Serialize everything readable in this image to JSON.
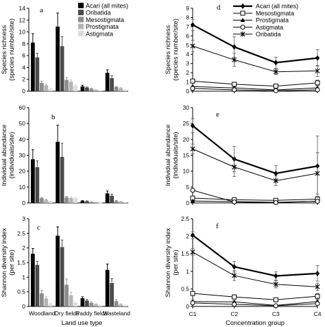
{
  "chart_data": [
    {
      "panel": "a",
      "type": "bar",
      "categories": [
        "Woodland",
        "Dry fields",
        "Paddy fields",
        "Wasteland"
      ],
      "ylabel": [
        "Species richness",
        "(species number/site)"
      ],
      "ylim": [
        0,
        14
      ],
      "yticks": [
        0,
        2,
        4,
        6,
        8,
        10,
        12,
        14
      ],
      "legend": "top-right",
      "series": [
        {
          "name": "Acari (all mites)",
          "color": "#000000",
          "values": [
            8.2,
            10.9,
            0.8,
            3.1
          ],
          "errors": [
            1.5,
            2.3,
            0.2,
            0.5
          ]
        },
        {
          "name": "Oribatida",
          "color": "#4a4a4a",
          "values": [
            5.7,
            7.6,
            0.6,
            2.2
          ],
          "errors": [
            0.7,
            1.6,
            0.1,
            0.4
          ]
        },
        {
          "name": "Mesostigmata",
          "color": "#8c8c8c",
          "values": [
            1.4,
            1.9,
            0.4,
            0.7
          ],
          "errors": [
            0.3,
            0.4,
            0.1,
            0.1
          ]
        },
        {
          "name": "Prostigmata",
          "color": "#b4b4b4",
          "values": [
            1.0,
            1.6,
            0.2,
            0.5
          ],
          "errors": [
            0.2,
            0.3,
            0.05,
            0.1
          ]
        },
        {
          "name": "Astigmata",
          "color": "#dcdcdc",
          "values": [
            0.4,
            0.9,
            0.05,
            0.2
          ],
          "errors": [
            0.1,
            0.2,
            0.02,
            0.05
          ]
        }
      ]
    },
    {
      "panel": "b",
      "type": "bar",
      "categories": [
        "Woodland",
        "Dry fields",
        "Paddy fields",
        "Wasteland"
      ],
      "ylabel": [
        "Individual abundance",
        "(individuals/site)"
      ],
      "ylim": [
        0,
        60
      ],
      "yticks": [
        0,
        10,
        20,
        30,
        40,
        50,
        60
      ],
      "series": [
        {
          "name": "Acari (all mites)",
          "values": [
            27.5,
            38.5,
            1.2,
            6.0
          ],
          "errors": [
            6.0,
            10.5,
            0.3,
            1.5
          ]
        },
        {
          "name": "Oribatida",
          "values": [
            22.5,
            29.0,
            1.0,
            4.5
          ],
          "errors": [
            4.0,
            8.5,
            0.3,
            1.0
          ]
        },
        {
          "name": "Mesostigmata",
          "values": [
            3.0,
            3.5,
            0.5,
            1.2
          ],
          "errors": [
            0.5,
            0.6,
            0.1,
            0.3
          ]
        },
        {
          "name": "Prostigmata",
          "values": [
            2.0,
            3.0,
            0.3,
            0.8
          ],
          "errors": [
            0.3,
            0.5,
            0.05,
            0.2
          ]
        },
        {
          "name": "Astigmata",
          "values": [
            1.0,
            3.0,
            0.1,
            0.2
          ],
          "errors": [
            0.2,
            0.6,
            0.02,
            0.05
          ]
        }
      ]
    },
    {
      "panel": "c",
      "type": "bar",
      "categories": [
        "Woodland",
        "Dry fields",
        "Paddy fields",
        "Wasteland"
      ],
      "xlabel": "Land use type",
      "ylabel": [
        "Shannon diversity index",
        "(per site)"
      ],
      "ylim": [
        0,
        3
      ],
      "yticks": [
        0,
        0.5,
        1,
        1.5,
        2,
        2.5,
        3
      ],
      "series": [
        {
          "name": "Acari (all mites)",
          "values": [
            1.8,
            2.42,
            0.28,
            1.25
          ],
          "errors": [
            0.18,
            0.3,
            0.05,
            0.2
          ]
        },
        {
          "name": "Oribatida",
          "values": [
            1.42,
            2.03,
            0.2,
            0.8
          ],
          "errors": [
            0.12,
            0.24,
            0.04,
            0.15
          ]
        },
        {
          "name": "Mesostigmata",
          "values": [
            0.45,
            0.74,
            0.12,
            0.18
          ],
          "errors": [
            0.1,
            0.2,
            0.03,
            0.05
          ]
        },
        {
          "name": "Prostigmata",
          "values": [
            0.27,
            0.38,
            0.07,
            0.07
          ],
          "errors": [
            0.06,
            0.1,
            0.02,
            0.02
          ]
        },
        {
          "name": "Astigmata",
          "values": [
            0.08,
            0.12,
            0.02,
            0.03
          ],
          "errors": [
            0.03,
            0.04,
            0.01,
            0.01
          ]
        }
      ]
    },
    {
      "panel": "d",
      "type": "line",
      "x": [
        "C1",
        "C2",
        "C3",
        "C4"
      ],
      "ylabel": [
        "Species richness",
        "(species number/site)"
      ],
      "ylim": [
        0,
        9
      ],
      "yticks": [
        0,
        1,
        2,
        3,
        4,
        5,
        6,
        7,
        8,
        9
      ],
      "legend": "top-right",
      "series": [
        {
          "name": "Acari (all mites)",
          "marker": "diamond",
          "width": 2.2,
          "values": [
            7.2,
            4.8,
            3.1,
            3.6
          ],
          "errors": [
            0.6,
            1.1,
            0.6,
            0.9
          ]
        },
        {
          "name": "Mesostigmata",
          "marker": "square",
          "width": 1,
          "values": [
            1.1,
            0.75,
            0.55,
            0.9
          ],
          "errors": [
            0.2,
            0.2,
            0.15,
            0.3
          ]
        },
        {
          "name": "Prostigmata",
          "marker": "triangle",
          "width": 1,
          "values": [
            0.5,
            0.35,
            0.15,
            0.35
          ],
          "errors": [
            0.1,
            0.1,
            0.05,
            0.1
          ]
        },
        {
          "name": "Astigmata",
          "marker": "circle",
          "width": 1,
          "values": [
            0.3,
            0.15,
            0.05,
            0.15
          ],
          "errors": [
            0.05,
            0.05,
            0.02,
            0.05
          ]
        },
        {
          "name": "Oribatida",
          "marker": "star",
          "width": 1,
          "values": [
            4.9,
            3.4,
            2.1,
            2.2
          ],
          "errors": [
            0.6,
            0.7,
            0.3,
            0.6
          ]
        }
      ]
    },
    {
      "panel": "e",
      "type": "line",
      "x": [
        "C1",
        "C2",
        "C3",
        "C4"
      ],
      "ylabel": [
        "Individual abundance",
        "(individuals/site)"
      ],
      "ylim": [
        0,
        30
      ],
      "yticks": [
        0,
        5,
        10,
        15,
        20,
        25,
        30
      ],
      "series": [
        {
          "name": "Acari (all mites)",
          "values": [
            24.3,
            13.8,
            9.3,
            11.6
          ],
          "errors": [
            2.2,
            4.0,
            2.5,
            9.5
          ]
        },
        {
          "name": "Mesostigmata",
          "values": [
            1.5,
            1.0,
            0.8,
            1.2
          ],
          "errors": [
            0.3,
            0.3,
            0.2,
            0.4
          ]
        },
        {
          "name": "Prostigmata",
          "values": [
            0.6,
            0.4,
            0.2,
            0.5
          ],
          "errors": [
            0.1,
            0.1,
            0.05,
            0.1
          ]
        },
        {
          "name": "Astigmata",
          "values": [
            4.0,
            0.3,
            0.1,
            0.5
          ],
          "errors": [
            0.5,
            0.1,
            0.05,
            0.1
          ]
        },
        {
          "name": "Oribatida",
          "values": [
            17.0,
            11.3,
            7.0,
            9.3
          ],
          "errors": [
            1.5,
            3.0,
            1.5,
            6.5
          ]
        }
      ]
    },
    {
      "panel": "f",
      "type": "line",
      "x": [
        "C1",
        "C2",
        "C3",
        "C4"
      ],
      "xlabel": "Concentration group",
      "ylabel": [
        "Shannon diversity index",
        "(per site)"
      ],
      "ylim": [
        0,
        2.5
      ],
      "yticks": [
        0,
        0.5,
        1,
        1.5,
        2,
        2.5
      ],
      "series": [
        {
          "name": "Acari (all mites)",
          "values": [
            2.03,
            1.13,
            0.87,
            0.94
          ],
          "errors": [
            0.1,
            0.15,
            0.12,
            0.22
          ]
        },
        {
          "name": "Mesostigmata",
          "values": [
            0.37,
            0.27,
            0.19,
            0.29
          ],
          "errors": [
            0.06,
            0.06,
            0.05,
            0.08
          ]
        },
        {
          "name": "Prostigmata",
          "values": [
            0.14,
            0.13,
            0.03,
            0.14
          ],
          "errors": [
            0.04,
            0.04,
            0.02,
            0.04
          ]
        },
        {
          "name": "Astigmata",
          "values": [
            0.1,
            0.06,
            0.02,
            0.08
          ],
          "errors": [
            0.03,
            0.02,
            0.01,
            0.02
          ]
        },
        {
          "name": "Oribatida",
          "values": [
            1.55,
            0.88,
            0.63,
            0.56
          ],
          "errors": [
            0.1,
            0.14,
            0.1,
            0.1
          ]
        }
      ]
    }
  ]
}
